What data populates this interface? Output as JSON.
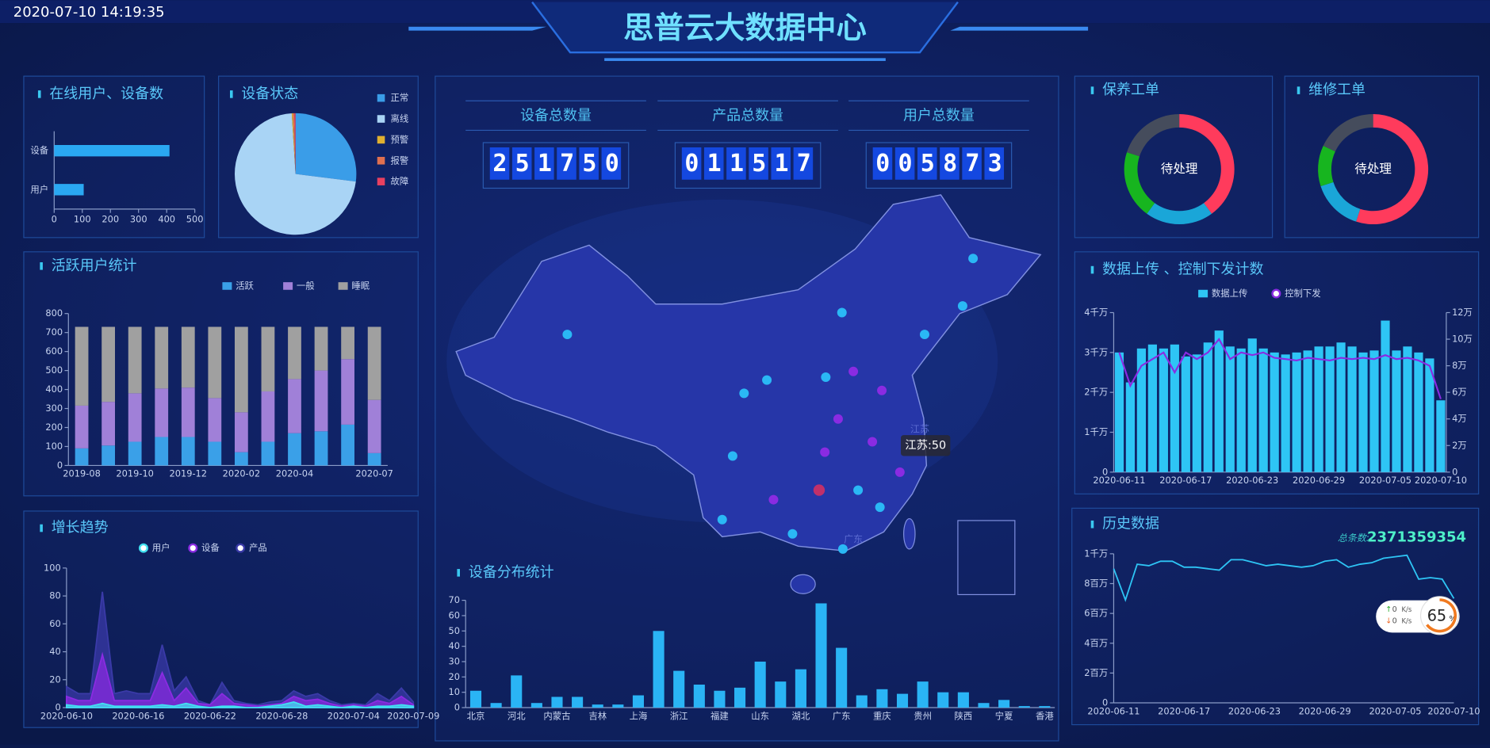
{
  "header": {
    "datetime": "2020-07-10 14:19:35",
    "title": "思普云大数据中心"
  },
  "stats": [
    {
      "label": "设备总数量",
      "value": "251750"
    },
    {
      "label": "产品总数量",
      "value": "011517"
    },
    {
      "label": "用户总数量",
      "value": "005873"
    }
  ],
  "map": {
    "tooltip": "江苏:50",
    "labels": [
      "江苏",
      "广东"
    ]
  },
  "net_widget": {
    "up": 0,
    "down": 0,
    "unit": "K/s",
    "percent": 65,
    "percent_unit": "%"
  },
  "chart_data": [
    {
      "type": "hbar",
      "title": "在线用户、设备数",
      "categories": [
        "设备",
        "用户"
      ],
      "values": [
        410,
        105
      ],
      "color": "#2aa8f2",
      "xlim": [
        0,
        500
      ],
      "xticks": [
        0,
        100,
        200,
        300,
        400,
        500
      ]
    },
    {
      "type": "pie",
      "title": "设备状态",
      "categories": [
        "正常",
        "离线",
        "预警",
        "报警",
        "故障"
      ],
      "values": [
        27,
        72,
        0.3,
        0.4,
        0.3
      ],
      "colors": [
        "#3a9de8",
        "#a9d4f5",
        "#e0b030",
        "#e07050",
        "#e84060"
      ]
    },
    {
      "type": "stacked_bar",
      "title": "活跃用户统计",
      "categories": [
        "2019-08",
        null,
        "2019-10",
        null,
        "2019-12",
        null,
        "2020-02",
        null,
        "2020-04",
        null,
        null,
        "2020-07"
      ],
      "series": [
        {
          "name": "活跃",
          "color": "#3aa0e8",
          "values": [
            90,
            105,
            125,
            150,
            150,
            125,
            70,
            125,
            170,
            180,
            215,
            65
          ]
        },
        {
          "name": "一般",
          "color": "#a080d8",
          "values": [
            225,
            230,
            255,
            255,
            260,
            230,
            210,
            265,
            285,
            320,
            345,
            280
          ]
        },
        {
          "name": "睡眠",
          "color": "#a0a0a0",
          "values": [
            415,
            395,
            350,
            325,
            320,
            375,
            450,
            340,
            275,
            230,
            170,
            385
          ]
        }
      ],
      "ylim": [
        0,
        800
      ],
      "yticks": [
        0,
        100,
        200,
        300,
        400,
        500,
        600,
        700,
        800
      ]
    },
    {
      "type": "area",
      "title": "增长趋势",
      "categories": [
        "2020-06-10",
        null,
        null,
        null,
        null,
        null,
        "2020-06-16",
        null,
        null,
        null,
        null,
        null,
        "2020-06-22",
        null,
        null,
        null,
        null,
        null,
        "2020-06-28",
        null,
        null,
        null,
        null,
        null,
        "2020-07-04",
        null,
        null,
        null,
        null,
        "2020-07-09"
      ],
      "series": [
        {
          "name": "用户",
          "color": "#40e0f0",
          "values": [
            2,
            1,
            1,
            3,
            1,
            1,
            1,
            1,
            2,
            1,
            3,
            1,
            0,
            1,
            1,
            0,
            0,
            1,
            2,
            4,
            1,
            2,
            1,
            0,
            1,
            0,
            1,
            1,
            2,
            1
          ]
        },
        {
          "name": "设备",
          "color": "#8a2be2",
          "values": [
            8,
            5,
            5,
            38,
            5,
            5,
            5,
            5,
            25,
            5,
            14,
            3,
            2,
            10,
            3,
            2,
            1,
            2,
            3,
            8,
            5,
            6,
            3,
            1,
            2,
            1,
            5,
            3,
            8,
            2
          ]
        },
        {
          "name": "产品",
          "color": "#3a3aa8",
          "values": [
            15,
            10,
            10,
            83,
            10,
            12,
            10,
            10,
            45,
            12,
            22,
            5,
            2,
            18,
            5,
            3,
            2,
            4,
            5,
            12,
            8,
            10,
            5,
            2,
            3,
            2,
            10,
            5,
            14,
            4
          ]
        }
      ],
      "ylim": [
        0,
        100
      ],
      "yticks": [
        0,
        20,
        40,
        60,
        80,
        100
      ]
    },
    {
      "type": "bar",
      "title": "设备分布统计",
      "categories": [
        "北京",
        null,
        "河北",
        null,
        "内蒙古",
        null,
        "吉林",
        null,
        "上海",
        null,
        "浙江",
        null,
        "福建",
        null,
        "山东",
        null,
        "湖北",
        null,
        "广东",
        null,
        "重庆",
        null,
        "贵州",
        null,
        "陕西",
        null,
        "宁夏",
        null,
        "香港"
      ],
      "values": [
        11,
        3,
        21,
        3,
        7,
        7,
        2,
        2,
        8,
        50,
        24,
        15,
        11,
        13,
        30,
        17,
        25,
        68,
        39,
        8,
        12,
        9,
        17,
        10,
        10,
        3,
        5,
        1,
        1
      ],
      "color": "#2ab4f5",
      "ylim": [
        0,
        70
      ],
      "yticks": [
        0,
        10,
        20,
        30,
        40,
        50,
        60,
        70
      ]
    },
    {
      "type": "donut",
      "title": "保养工单",
      "center_label": "待处理",
      "values": [
        40,
        20,
        20,
        20
      ],
      "colors": [
        "#ff3b5c",
        "#1aa6d8",
        "#17b51f",
        "#454c5c"
      ]
    },
    {
      "type": "donut",
      "title": "维修工单",
      "center_label": "待处理",
      "values": [
        55,
        15,
        12,
        18
      ],
      "colors": [
        "#ff3b5c",
        "#1aa6d8",
        "#17b51f",
        "#454c5c"
      ]
    },
    {
      "type": "bar_line",
      "title": "数据上传 、控制下发计数",
      "categories": [
        "2020-06-11",
        null,
        null,
        null,
        null,
        null,
        "2020-06-17",
        null,
        null,
        null,
        null,
        null,
        "2020-06-23",
        null,
        null,
        null,
        null,
        null,
        "2020-06-29",
        null,
        null,
        null,
        null,
        null,
        "2020-07-05",
        null,
        null,
        null,
        null,
        "2020-07-10"
      ],
      "series": [
        {
          "name": "数据上传",
          "color": "#2ec5f5",
          "values": [
            30000000,
            22500000,
            31000000,
            32000000,
            31000000,
            32000000,
            29000000,
            29500000,
            32500000,
            35500000,
            31500000,
            31000000,
            33500000,
            31000000,
            30000000,
            29500000,
            30000000,
            30500000,
            31500000,
            31500000,
            32500000,
            31500000,
            30000000,
            30500000,
            38000000,
            30500000,
            31500000,
            30000000,
            28500000,
            18000000
          ]
        },
        {
          "name": "控制下发",
          "color": "#8a2be2",
          "axis": "y2",
          "values": [
            90000,
            65000,
            80000,
            85000,
            90000,
            75000,
            90000,
            85000,
            90000,
            100000,
            85000,
            90000,
            88000,
            90000,
            86000,
            85000,
            84000,
            86000,
            85000,
            84000,
            86000,
            85000,
            86000,
            85000,
            88000,
            85000,
            86000,
            84000,
            80000,
            55000
          ]
        }
      ],
      "ylim": [
        0,
        40000000
      ],
      "yticks": [
        0,
        {
          "value": 10000000,
          "label": "1千万"
        },
        {
          "value": 20000000,
          "label": "2千万"
        },
        {
          "value": 30000000,
          "label": "3千万"
        },
        {
          "value": 40000000,
          "label": "4千万"
        }
      ],
      "y2lim": [
        0,
        120000
      ],
      "y2ticks": [
        0,
        {
          "value": 20000,
          "label": "2万"
        },
        {
          "value": 40000,
          "label": "4万"
        },
        {
          "value": 60000,
          "label": "6万"
        },
        {
          "value": 80000,
          "label": "8万"
        },
        {
          "value": 100000,
          "label": "10万"
        },
        {
          "value": 120000,
          "label": "12万"
        }
      ]
    },
    {
      "type": "line",
      "title": "历史数据",
      "total_label": "总条数:",
      "total": 2371359354,
      "color": "#2ec5f5",
      "categories": [
        "2020-06-11",
        null,
        null,
        null,
        null,
        null,
        "2020-06-17",
        null,
        null,
        null,
        null,
        null,
        "2020-06-23",
        null,
        null,
        null,
        null,
        null,
        "2020-06-29",
        null,
        null,
        null,
        null,
        null,
        "2020-07-05",
        null,
        null,
        null,
        null,
        "2020-07-10"
      ],
      "values": [
        9000000,
        6900000,
        9300000,
        9200000,
        9500000,
        9500000,
        9100000,
        9100000,
        9000000,
        8900000,
        9600000,
        9600000,
        9400000,
        9200000,
        9300000,
        9200000,
        9100000,
        9200000,
        9500000,
        9600000,
        9100000,
        9300000,
        9400000,
        9700000,
        9800000,
        9900000,
        8300000,
        8400000,
        8300000,
        7000000
      ],
      "ylim": [
        0,
        10000000
      ],
      "yticks": [
        0,
        {
          "value": 2000000,
          "label": "2百万"
        },
        {
          "value": 4000000,
          "label": "4百万"
        },
        {
          "value": 6000000,
          "label": "6百万"
        },
        {
          "value": 8000000,
          "label": "8百万"
        },
        {
          "value": 10000000,
          "label": "1千万"
        }
      ]
    }
  ]
}
